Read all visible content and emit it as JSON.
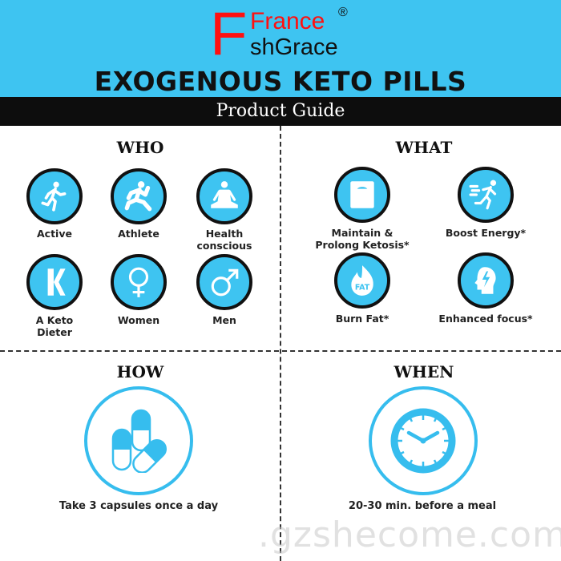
{
  "brand": {
    "line1": "France",
    "line2": "shGrace",
    "initial": "F",
    "registered": "®"
  },
  "title": "EXOGENOUS KETO PILLS",
  "subtitle": "Product Guide",
  "colors": {
    "accent": "#3ec4f1",
    "brand_red": "#ff1010",
    "dark": "#0d0d0d"
  },
  "who": {
    "heading": "WHO",
    "items": [
      {
        "label": "Active",
        "icon": "running-person-icon"
      },
      {
        "label": "Athlete",
        "icon": "athlete-sprint-icon"
      },
      {
        "label": "Health conscious",
        "icon": "meditation-icon"
      },
      {
        "label": "A Keto Dieter",
        "icon": "letter-k-icon"
      },
      {
        "label": "Women",
        "icon": "female-symbol-icon"
      },
      {
        "label": "Men",
        "icon": "male-symbol-icon"
      }
    ]
  },
  "what": {
    "heading": "WHAT",
    "items": [
      {
        "label": "Maintain & Prolong Ketosis*",
        "icon": "scale-icon"
      },
      {
        "label": "Boost Energy*",
        "icon": "fast-runner-icon"
      },
      {
        "label": "Burn Fat*",
        "icon": "fat-flame-icon",
        "icon_text": "FAT"
      },
      {
        "label": "Enhanced focus*",
        "icon": "head-lightning-icon"
      }
    ]
  },
  "how": {
    "heading": "HOW",
    "caption": "Take 3 capsules once a day",
    "icon": "capsules-icon"
  },
  "when": {
    "heading": "WHEN",
    "caption": "20-30 min. before a meal",
    "icon": "clock-icon"
  },
  "watermark": ".gzshecome.com"
}
